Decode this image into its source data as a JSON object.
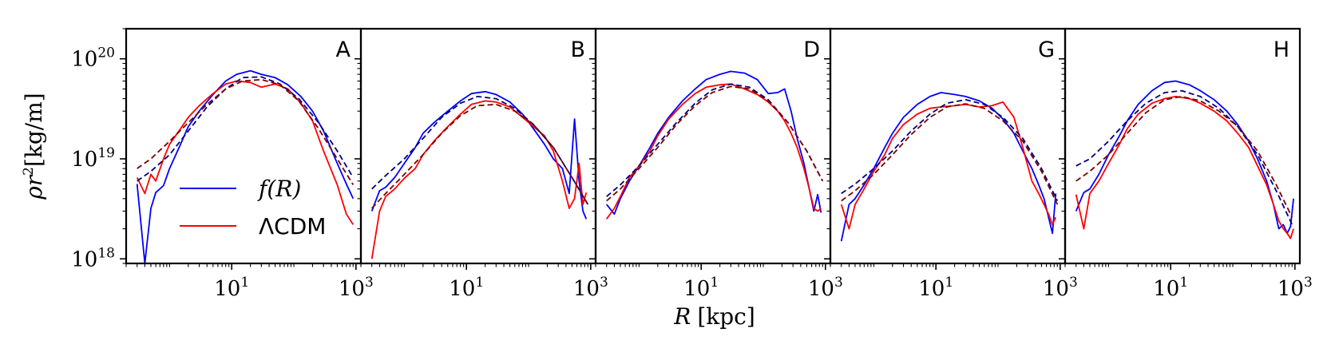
{
  "chart_data": {
    "type": "line",
    "scale": {
      "x": "log",
      "y": "log"
    },
    "xlim": [
      0.2,
      1200
    ],
    "ylim": [
      9e+17,
      2e+20
    ],
    "xlabel": {
      "sym": "R",
      "unit": "[kpc]"
    },
    "ylabel": {
      "sym": "ρr",
      "sup": "2",
      "unit": "[kg/m]"
    },
    "x_ticks": [
      {
        "value": 10,
        "base": "10",
        "exp": "1"
      },
      {
        "value": 1000,
        "base": "10",
        "exp": "3"
      }
    ],
    "y_ticks": [
      {
        "value": 1e+18,
        "base": "10",
        "exp": "18"
      },
      {
        "value": 1e+19,
        "base": "10",
        "exp": "19"
      },
      {
        "value": 1e+20,
        "base": "10",
        "exp": "20"
      }
    ],
    "legend": [
      {
        "name": "f(R)",
        "color": "#0000ff",
        "position": "lower-left"
      },
      {
        "name": "ΛCDM",
        "color": "#ff0000",
        "position": "lower-left"
      }
    ],
    "colors": {
      "fR": "#0000ff",
      "lcdm": "#ff0000",
      "fit_fR": "#00007a",
      "fit_lcdm": "#7a0000"
    },
    "panels": [
      {
        "label": "A",
        "series": [
          {
            "name": "f(R)",
            "style": "solid",
            "x": [
              0.3,
              0.4,
              0.5,
              0.6,
              0.8,
              1,
              1.5,
              2,
              3,
              5,
              8,
              12,
              20,
              30,
              50,
              80,
              130,
              200,
              300,
              500,
              700,
              900
            ],
            "y": [
              5.6e+18,
              9e+17,
              3.2e+18,
              4.6e+18,
              5.4e+18,
              8e+18,
              1.4e+19,
              2.1e+19,
              3e+19,
              4.4e+19,
              6e+19,
              7e+19,
              7.6e+19,
              7e+19,
              6.5e+19,
              5.5e+19,
              4.2e+19,
              3e+19,
              1.9e+19,
              9e+18,
              5.6e+18,
              4e+18
            ]
          },
          {
            "name": "ΛCDM",
            "style": "solid",
            "x": [
              0.3,
              0.4,
              0.5,
              0.6,
              0.8,
              1,
              1.5,
              2,
              3,
              5,
              8,
              12,
              20,
              30,
              50,
              80,
              130,
              200,
              300,
              500,
              700,
              900
            ],
            "y": [
              6.5e+18,
              4.5e+18,
              7e+18,
              6e+18,
              1e+19,
              1.4e+19,
              2e+19,
              2.6e+19,
              3.4e+19,
              4.5e+19,
              5.6e+19,
              6e+19,
              5.8e+19,
              5.2e+19,
              5.6e+19,
              5e+19,
              3.6e+19,
              2.4e+19,
              1.2e+19,
              5.5e+18,
              2.8e+18,
              2.2e+18
            ]
          },
          {
            "name": "f(R) fit",
            "style": "dashed",
            "x": [
              0.3,
              0.5,
              1,
              2,
              4,
              8,
              15,
              30,
              60,
              120,
              250,
              500,
              900
            ],
            "y": [
              6e+18,
              7.5e+18,
              1.1e+19,
              1.9e+19,
              3.3e+19,
              5e+19,
              6.5e+19,
              6.6e+19,
              5.6e+19,
              4e+19,
              2.3e+19,
              1.2e+19,
              6.5e+18
            ]
          },
          {
            "name": "ΛCDM fit",
            "style": "dashed",
            "x": [
              0.3,
              0.5,
              1,
              2,
              4,
              8,
              15,
              30,
              60,
              120,
              250,
              500,
              900
            ],
            "y": [
              8e+18,
              1e+19,
              1.5e+19,
              2.3e+19,
              3.5e+19,
              5e+19,
              6e+19,
              6.2e+19,
              5.5e+19,
              3.8e+19,
              2e+19,
              1e+19,
              5.5e+18
            ]
          }
        ]
      },
      {
        "label": "B",
        "series": [
          {
            "name": "f(R)",
            "style": "solid",
            "x": [
              0.3,
              0.4,
              0.5,
              0.7,
              1,
              1.5,
              2,
              3,
              5,
              8,
              12,
              20,
              30,
              50,
              80,
              120,
              180,
              250,
              350,
              450,
              550,
              650,
              750,
              850
            ],
            "y": [
              3e+18,
              4.8e+18,
              5.2e+18,
              6.5e+18,
              9e+18,
              1.3e+19,
              1.8e+19,
              2.3e+19,
              3e+19,
              3.8e+19,
              4.5e+19,
              4.7e+19,
              4.4e+19,
              3.7e+19,
              2.8e+19,
              2e+19,
              1.4e+19,
              1e+19,
              8e+18,
              4.5e+18,
              2.5e+19,
              6e+18,
              3e+18,
              2.5e+18
            ]
          },
          {
            "name": "ΛCDM",
            "style": "solid",
            "x": [
              0.3,
              0.4,
              0.5,
              0.7,
              1,
              1.5,
              2,
              3,
              5,
              8,
              12,
              20,
              30,
              50,
              80,
              120,
              180,
              250,
              350,
              450,
              550,
              650,
              750,
              850
            ],
            "y": [
              1e+18,
              3e+18,
              4.2e+18,
              5e+18,
              6.4e+18,
              8e+18,
              1.1e+19,
              1.5e+19,
              2.1e+19,
              2.8e+19,
              3.5e+19,
              3.8e+19,
              3.7e+19,
              3.3e+19,
              2.6e+19,
              2.1e+19,
              1.7e+19,
              1.2e+19,
              6e+18,
              3.2e+18,
              4e+18,
              9e+18,
              3.5e+18,
              4.6e+18
            ]
          },
          {
            "name": "f(R) fit",
            "style": "dashed",
            "x": [
              0.3,
              0.5,
              1,
              2,
              4,
              8,
              15,
              30,
              60,
              120,
              250,
              500,
              900
            ],
            "y": [
              5e+18,
              6.8e+18,
              1e+19,
              1.6e+19,
              2.6e+19,
              3.6e+19,
              4.2e+19,
              4e+19,
              3.2e+19,
              2.2e+19,
              1.3e+19,
              6.5e+18,
              3.5e+18
            ]
          },
          {
            "name": "ΛCDM fit",
            "style": "dashed",
            "x": [
              0.3,
              0.5,
              1,
              2,
              4,
              8,
              15,
              30,
              60,
              120,
              250,
              500,
              900
            ],
            "y": [
              3.2e+18,
              4.5e+18,
              7e+18,
              1.1e+19,
              1.8e+19,
              2.7e+19,
              3.4e+19,
              3.5e+19,
              3e+19,
              2.2e+19,
              1.3e+19,
              6.5e+18,
              3.5e+18
            ]
          }
        ]
      },
      {
        "label": "D",
        "series": [
          {
            "name": "f(R)",
            "style": "solid",
            "x": [
              0.3,
              0.4,
              0.5,
              0.7,
              1,
              1.5,
              2,
              3,
              5,
              8,
              12,
              20,
              30,
              50,
              80,
              120,
              170,
              220,
              280,
              350,
              450,
              550,
              650,
              750,
              850
            ],
            "y": [
              3.5e+18,
              2.8e+18,
              4e+18,
              6e+18,
              8.5e+18,
              1.3e+19,
              1.8e+19,
              2.6e+19,
              3.8e+19,
              5e+19,
              6.2e+19,
              7e+19,
              7.5e+19,
              7.2e+19,
              6.2e+19,
              4.5e+19,
              4.6e+19,
              5e+19,
              3e+19,
              1.6e+19,
              9e+18,
              5e+18,
              3e+18,
              4.4e+18,
              2.9e+18
            ]
          },
          {
            "name": "ΛCDM",
            "style": "solid",
            "x": [
              0.3,
              0.4,
              0.5,
              0.7,
              1,
              1.5,
              2,
              3,
              5,
              8,
              12,
              20,
              30,
              50,
              80,
              120,
              170,
              220,
              280,
              350,
              450,
              550,
              650,
              750,
              850
            ],
            "y": [
              2.5e+18,
              3.2e+18,
              4.2e+18,
              6.5e+18,
              8.5e+18,
              1.2e+19,
              1.7e+19,
              2.5e+19,
              3.5e+19,
              4.5e+19,
              5.2e+19,
              5.5e+19,
              5.6e+19,
              5e+19,
              4.4e+19,
              3.7e+19,
              3e+19,
              2.4e+19,
              1.8e+19,
              1.3e+19,
              8e+18,
              5e+18,
              3.2e+18,
              3e+18,
              3.2e+18
            ]
          },
          {
            "name": "f(R) fit",
            "style": "dashed",
            "x": [
              0.3,
              0.5,
              1,
              2,
              4,
              8,
              15,
              30,
              60,
              120,
              250,
              500,
              900
            ],
            "y": [
              4.2e+18,
              5.5e+18,
              8.5e+18,
              1.4e+19,
              2.3e+19,
              3.6e+19,
              4.9e+19,
              5.6e+19,
              5.2e+19,
              3.9e+19,
              2.3e+19,
              1.2e+19,
              6e+18
            ]
          },
          {
            "name": "ΛCDM fit",
            "style": "dashed",
            "x": [
              0.3,
              0.5,
              1,
              2,
              4,
              8,
              15,
              30,
              60,
              120,
              250,
              500,
              900
            ],
            "y": [
              3.8e+18,
              5e+18,
              8e+18,
              1.3e+19,
              2.2e+19,
              3.4e+19,
              4.6e+19,
              5.3e+19,
              5e+19,
              3.8e+19,
              2.3e+19,
              1.2e+19,
              6e+18
            ]
          }
        ]
      },
      {
        "label": "G",
        "series": [
          {
            "name": "f(R)",
            "style": "solid",
            "x": [
              0.3,
              0.4,
              0.5,
              0.7,
              1,
              1.5,
              2,
              3,
              5,
              8,
              12,
              20,
              30,
              50,
              80,
              120,
              180,
              250,
              350,
              450,
              550,
              650,
              750,
              850
            ],
            "y": [
              1.5e+18,
              3.5e+18,
              4e+18,
              5.5e+18,
              8e+18,
              1.3e+19,
              1.8e+19,
              2.6e+19,
              3.5e+19,
              4.2e+19,
              4.6e+19,
              4.4e+19,
              4.2e+19,
              3.8e+19,
              3.2e+19,
              2.5e+19,
              1.8e+19,
              1.2e+19,
              8e+18,
              5.5e+18,
              4e+18,
              2.6e+18,
              1.8e+18,
              4.5e+18
            ]
          },
          {
            "name": "ΛCDM",
            "style": "solid",
            "x": [
              0.3,
              0.4,
              0.5,
              0.7,
              1,
              1.5,
              2,
              3,
              5,
              8,
              12,
              20,
              30,
              50,
              80,
              120,
              180,
              250,
              350,
              450,
              550,
              650,
              750,
              850
            ],
            "y": [
              3.5e+18,
              2e+18,
              3.5e+18,
              5e+18,
              7.5e+18,
              1.1e+19,
              1.6e+19,
              2.2e+19,
              2.8e+19,
              3.2e+19,
              3.3e+19,
              3.4e+19,
              3.5e+19,
              3.3e+19,
              3.4e+19,
              3.7e+19,
              2.6e+19,
              1.3e+19,
              6e+18,
              4.5e+18,
              3.5e+18,
              2.8e+18,
              2.2e+18,
              2.6e+18
            ]
          },
          {
            "name": "f(R) fit",
            "style": "dashed",
            "x": [
              0.3,
              0.5,
              1,
              2,
              4,
              8,
              15,
              30,
              60,
              120,
              250,
              500,
              900
            ],
            "y": [
              4.5e+18,
              5.6e+18,
              8e+18,
              1.2e+19,
              1.9e+19,
              2.8e+19,
              3.6e+19,
              3.9e+19,
              3.5e+19,
              2.6e+19,
              1.6e+19,
              8e+18,
              3.8e+18
            ]
          },
          {
            "name": "ΛCDM fit",
            "style": "dashed",
            "x": [
              0.3,
              0.5,
              1,
              2,
              4,
              8,
              15,
              30,
              60,
              120,
              250,
              500,
              900
            ],
            "y": [
              3.8e+18,
              4.8e+18,
              7e+18,
              1.1e+19,
              1.75e+19,
              2.6e+19,
              3.3e+19,
              3.55e+19,
              3.2e+19,
              2.4e+19,
              1.5e+19,
              7.5e+18,
              3.5e+18
            ]
          }
        ]
      },
      {
        "label": "H",
        "series": [
          {
            "name": "f(R)",
            "style": "solid",
            "x": [
              0.3,
              0.4,
              0.5,
              0.7,
              1,
              1.5,
              2,
              3,
              5,
              8,
              12,
              20,
              30,
              50,
              80,
              120,
              180,
              250,
              350,
              450,
              550,
              650,
              750,
              850,
              950
            ],
            "y": [
              3e+18,
              4.6e+18,
              5e+18,
              7e+18,
              1.1e+19,
              1.7e+19,
              2.4e+19,
              3.5e+19,
              4.8e+19,
              5.8e+19,
              6e+19,
              5.5e+19,
              4.8e+19,
              3.9e+19,
              3e+19,
              2.2e+19,
              1.5e+19,
              1e+19,
              6e+18,
              3.5e+18,
              2e+18,
              2.2e+18,
              1.8e+18,
              2.1e+18,
              4e+18
            ]
          },
          {
            "name": "ΛCDM",
            "style": "solid",
            "x": [
              0.3,
              0.4,
              0.5,
              0.7,
              1,
              1.5,
              2,
              3,
              5,
              8,
              12,
              20,
              30,
              50,
              80,
              120,
              180,
              250,
              350,
              450,
              550,
              650,
              750,
              850,
              950
            ],
            "y": [
              4.4e+18,
              2e+18,
              4.5e+18,
              6e+18,
              9e+18,
              1.4e+19,
              2e+19,
              2.8e+19,
              3.6e+19,
              4e+19,
              4.2e+19,
              4e+19,
              3.6e+19,
              3e+19,
              2.4e+19,
              1.8e+19,
              1.3e+19,
              8.5e+18,
              5.5e+18,
              3.5e+18,
              2.4e+18,
              2e+18,
              1.8e+18,
              1.6e+18,
              2e+18
            ]
          },
          {
            "name": "f(R) fit",
            "style": "dashed",
            "x": [
              0.3,
              0.5,
              1,
              2,
              4,
              8,
              15,
              30,
              60,
              120,
              250,
              500,
              900
            ],
            "y": [
              8.5e+18,
              1e+19,
              1.5e+19,
              2.4e+19,
              3.6e+19,
              4.6e+19,
              4.8e+19,
              4.2e+19,
              3.2e+19,
              2.1e+19,
              1.1e+19,
              4.8e+18,
              2.2e+18
            ]
          },
          {
            "name": "ΛCDM fit",
            "style": "dashed",
            "x": [
              0.3,
              0.5,
              1,
              2,
              4,
              8,
              15,
              30,
              60,
              120,
              250,
              500,
              900
            ],
            "y": [
              6e+18,
              7.5e+18,
              1.1e+19,
              1.8e+19,
              2.9e+19,
              3.9e+19,
              4.2e+19,
              3.8e+19,
              3e+19,
              2.1e+19,
              1.2e+19,
              5.5e+18,
              2.6e+18
            ]
          }
        ]
      }
    ]
  }
}
